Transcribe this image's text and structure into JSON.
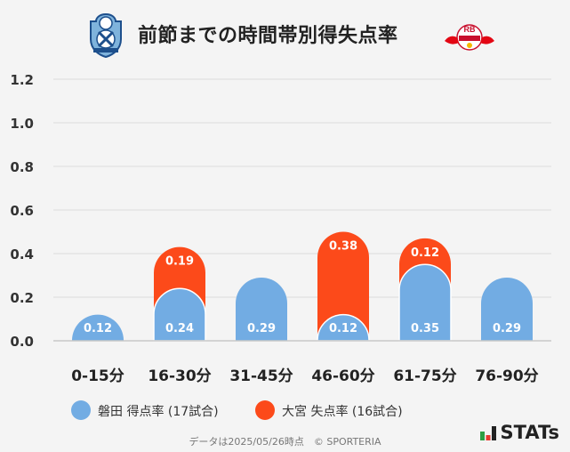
{
  "title": "前節までの時間帯別得失点率",
  "chart_data": {
    "type": "bar",
    "stacked": true,
    "categories": [
      "0-15分",
      "16-30分",
      "31-45分",
      "46-60分",
      "61-75分",
      "76-90分"
    ],
    "series": [
      {
        "name": "磐田 得点率 (17試合)",
        "color": "#72ace3",
        "values": [
          0.12,
          0.24,
          0.29,
          0.12,
          0.35,
          0.29
        ]
      },
      {
        "name": "大宮 失点率 (16試合)",
        "color": "#fc4a1a",
        "values": [
          null,
          0.19,
          null,
          0.38,
          0.12,
          null
        ]
      }
    ],
    "data_labels": [
      [
        "0.12",
        "0.24",
        "0.29",
        "0.12",
        "0.35",
        "0.29"
      ],
      [
        "",
        "0.19",
        "",
        "0.38",
        "0.12",
        ""
      ]
    ],
    "y_ticks": [
      "0.0",
      "0.2",
      "0.4",
      "0.6",
      "0.8",
      "1.0",
      "1.2"
    ],
    "ylim": [
      0,
      1.2
    ],
    "grid": true,
    "legend": "bottom"
  },
  "legend": {
    "home_label": "磐田 得点率 (17試合)",
    "away_label": "大宮 失点率 (16試合)"
  },
  "footer": "データは2025/05/26時点　© SPORTERIA",
  "brand": {
    "name": "STATs"
  },
  "logos": {
    "home_icon": "jubilo-iwata-crest",
    "away_icon": "rb-omiya-ardija-crest",
    "away_text": "RB"
  }
}
